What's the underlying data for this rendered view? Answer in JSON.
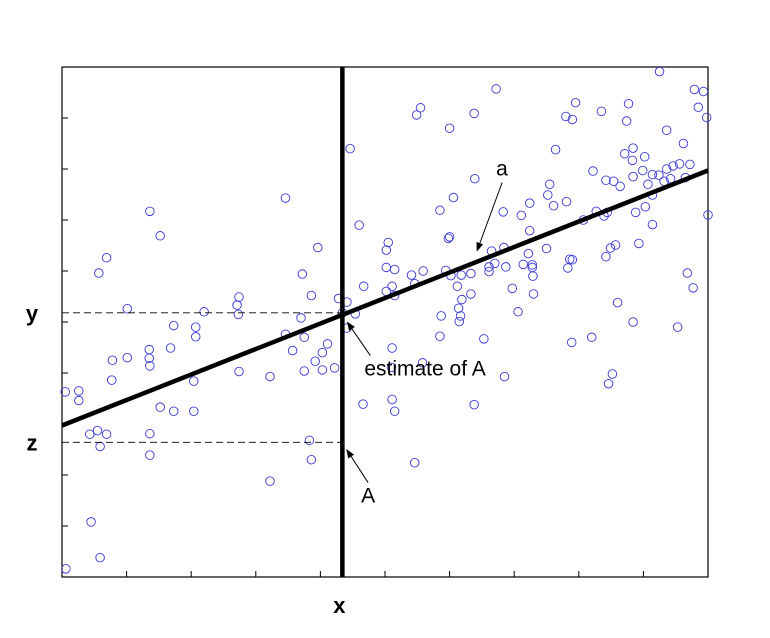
{
  "colors": {
    "point": "#3a3ad6",
    "line": "#000000",
    "frame": "#000000"
  },
  "chart_data": {
    "type": "scatter",
    "title": "",
    "xlabel": "x",
    "ylabel": "",
    "xlim": [
      0,
      100
    ],
    "ylim": [
      0,
      100
    ],
    "grid": false,
    "legend": "none",
    "tick_labels_shown": false,
    "x_ticks": [
      0,
      10,
      20,
      30,
      40,
      50,
      60,
      70,
      80,
      90,
      100
    ],
    "y_ticks": [
      0,
      10,
      20,
      30,
      40,
      50,
      60,
      70,
      80,
      90,
      100
    ],
    "marked_levels": [
      {
        "label": "y",
        "value": 51.8
      },
      {
        "label": "z",
        "value": 26.4
      }
    ],
    "vertical_marker": {
      "label": "x",
      "value": 43.4
    },
    "regression_line": {
      "x": [
        0,
        100
      ],
      "y": [
        29.7,
        79.7
      ]
    },
    "annotations": [
      {
        "text": "a",
        "text_xy": [
          67.2,
          78.7
        ],
        "point_xy": [
          64.2,
          63.8
        ]
      },
      {
        "text": "estimate of A",
        "text_xy": [
          46.8,
          39.5
        ],
        "point_xy": [
          44.1,
          50.1
        ]
      },
      {
        "text": "A",
        "text_xy": [
          46.3,
          14.6
        ],
        "point_xy": [
          44.0,
          25.1
        ]
      }
    ],
    "points": [
      [
        0.6,
        1.6
      ],
      [
        0.5,
        36.3
      ],
      [
        2.6,
        36.5
      ],
      [
        2.6,
        34.6
      ],
      [
        4.3,
        28.0
      ],
      [
        5.5,
        28.7
      ],
      [
        6.9,
        28.0
      ],
      [
        5.9,
        25.6
      ],
      [
        4.5,
        10.8
      ],
      [
        5.9,
        3.8
      ],
      [
        5.7,
        59.6
      ],
      [
        6.9,
        62.6
      ],
      [
        7.7,
        38.6
      ],
      [
        7.8,
        42.5
      ],
      [
        10.1,
        43.0
      ],
      [
        10.1,
        52.6
      ],
      [
        13.5,
        42.9
      ],
      [
        13.5,
        44.6
      ],
      [
        13.6,
        41.4
      ],
      [
        13.6,
        28.1
      ],
      [
        13.6,
        23.9
      ],
      [
        13.6,
        71.7
      ],
      [
        15.2,
        66.9
      ],
      [
        15.2,
        33.3
      ],
      [
        16.8,
        44.9
      ],
      [
        17.3,
        49.3
      ],
      [
        17.3,
        32.5
      ],
      [
        20.4,
        32.5
      ],
      [
        20.4,
        38.4
      ],
      [
        20.7,
        47.1
      ],
      [
        20.7,
        49.0
      ],
      [
        27.4,
        54.9
      ],
      [
        27.1,
        53.3
      ],
      [
        27.3,
        51.5
      ],
      [
        27.4,
        40.3
      ],
      [
        32.2,
        39.3
      ],
      [
        32.2,
        18.8
      ],
      [
        34.6,
        47.6
      ],
      [
        34.6,
        74.3
      ],
      [
        35.7,
        44.4
      ],
      [
        37.0,
        50.8
      ],
      [
        37.2,
        59.4
      ],
      [
        37.5,
        47.0
      ],
      [
        37.5,
        40.4
      ],
      [
        38.3,
        26.8
      ],
      [
        38.6,
        55.2
      ],
      [
        38.6,
        23.0
      ],
      [
        39.2,
        42.3
      ],
      [
        39.6,
        64.6
      ],
      [
        40.3,
        44.0
      ],
      [
        40.3,
        40.6
      ],
      [
        41.1,
        45.7
      ],
      [
        42.2,
        41.0
      ],
      [
        42.8,
        54.6
      ],
      [
        43.4,
        51.8
      ],
      [
        44.1,
        48.8
      ],
      [
        44.1,
        53.9
      ],
      [
        44.6,
        84.0
      ],
      [
        45.4,
        51.6
      ],
      [
        46.0,
        69.0
      ],
      [
        46.7,
        57.0
      ],
      [
        46.6,
        33.9
      ],
      [
        50.2,
        64.1
      ],
      [
        50.2,
        56.0
      ],
      [
        50.2,
        60.7
      ],
      [
        50.5,
        65.6
      ],
      [
        51.1,
        57.0
      ],
      [
        51.5,
        60.3
      ],
      [
        51.5,
        55.2
      ],
      [
        51.1,
        44.9
      ],
      [
        51.0,
        41.1
      ],
      [
        51.1,
        34.8
      ],
      [
        51.5,
        32.5
      ],
      [
        54.1,
        59.2
      ],
      [
        54.6,
        57.5
      ],
      [
        54.9,
        90.6
      ],
      [
        55.5,
        92.0
      ],
      [
        55.9,
        60.0
      ],
      [
        54.6,
        22.4
      ],
      [
        55.8,
        42.0
      ],
      [
        58.5,
        47.2
      ],
      [
        58.5,
        71.9
      ],
      [
        58.7,
        51.2
      ],
      [
        59.4,
        60.1
      ],
      [
        59.8,
        66.4
      ],
      [
        60.0,
        66.7
      ],
      [
        60.0,
        88.0
      ],
      [
        60.2,
        59.1
      ],
      [
        60.6,
        74.4
      ],
      [
        61.2,
        57.0
      ],
      [
        61.4,
        52.7
      ],
      [
        61.7,
        51.2
      ],
      [
        61.5,
        50.1
      ],
      [
        61.9,
        54.4
      ],
      [
        61.8,
        59.2
      ],
      [
        63.3,
        59.5
      ],
      [
        63.3,
        55.5
      ],
      [
        63.8,
        90.9
      ],
      [
        63.8,
        33.8
      ],
      [
        63.9,
        78.1
      ],
      [
        65.3,
        46.7
      ],
      [
        66.1,
        59.9
      ],
      [
        66.1,
        60.8
      ],
      [
        66.5,
        63.9
      ],
      [
        67.0,
        61.5
      ],
      [
        67.2,
        95.7
      ],
      [
        68.3,
        71.6
      ],
      [
        68.4,
        64.6
      ],
      [
        68.7,
        60.8
      ],
      [
        68.5,
        39.3
      ],
      [
        69.7,
        56.6
      ],
      [
        70.6,
        52.0
      ],
      [
        71.1,
        70.9
      ],
      [
        71.4,
        61.3
      ],
      [
        72.2,
        63.4
      ],
      [
        72.4,
        73.3
      ],
      [
        72.4,
        67.9
      ],
      [
        72.8,
        60.7
      ],
      [
        72.8,
        61.2
      ],
      [
        72.9,
        59.0
      ],
      [
        73.0,
        55.5
      ],
      [
        75.0,
        64.4
      ],
      [
        75.2,
        74.9
      ],
      [
        75.5,
        77.0
      ],
      [
        76.1,
        72.8
      ],
      [
        76.4,
        83.8
      ],
      [
        78.1,
        73.6
      ],
      [
        78.3,
        60.6
      ],
      [
        78.6,
        62.3
      ],
      [
        78.9,
        46.0
      ],
      [
        79.0,
        62.2
      ],
      [
        79.0,
        89.7
      ],
      [
        79.5,
        93.0
      ],
      [
        80.7,
        70.0
      ],
      [
        82.0,
        47.0
      ],
      [
        82.2,
        79.6
      ],
      [
        82.7,
        71.7
      ],
      [
        83.5,
        91.3
      ],
      [
        83.9,
        70.8
      ],
      [
        84.4,
        71.5
      ],
      [
        84.2,
        77.8
      ],
      [
        84.2,
        62.8
      ],
      [
        84.6,
        37.9
      ],
      [
        85.2,
        39.8
      ],
      [
        85.4,
        77.6
      ],
      [
        84.9,
        64.5
      ],
      [
        85.7,
        65.1
      ],
      [
        86.4,
        76.6
      ],
      [
        87.1,
        83.0
      ],
      [
        87.4,
        89.4
      ],
      [
        87.7,
        92.8
      ],
      [
        88.4,
        84.1
      ],
      [
        88.4,
        50.0
      ],
      [
        88.4,
        78.5
      ],
      [
        88.8,
        71.5
      ],
      [
        88.3,
        81.7
      ],
      [
        89.3,
        65.4
      ],
      [
        89.9,
        79.7
      ],
      [
        90.3,
        72.6
      ],
      [
        90.2,
        82.4
      ],
      [
        90.7,
        77.0
      ],
      [
        91.4,
        74.9
      ],
      [
        91.4,
        78.9
      ],
      [
        91.4,
        69.1
      ],
      [
        92.4,
        78.8
      ],
      [
        93.2,
        77.6
      ],
      [
        93.6,
        87.6
      ],
      [
        93.6,
        80.0
      ],
      [
        94.2,
        78.1
      ],
      [
        94.6,
        80.6
      ],
      [
        95.3,
        49.0
      ],
      [
        95.6,
        81.0
      ],
      [
        96.2,
        85.0
      ],
      [
        96.5,
        78.3
      ],
      [
        97.2,
        80.9
      ],
      [
        97.9,
        95.6
      ],
      [
        96.8,
        59.6
      ],
      [
        97.7,
        56.7
      ],
      [
        98.5,
        92.1
      ],
      [
        99.8,
        90.1
      ],
      [
        100.0,
        71.0
      ],
      [
        99.3,
        95.2
      ],
      [
        92.5,
        99.1
      ],
      [
        86.0,
        53.8
      ],
      [
        78.0,
        90.3
      ],
      [
        22.0,
        52.0
      ]
    ]
  }
}
